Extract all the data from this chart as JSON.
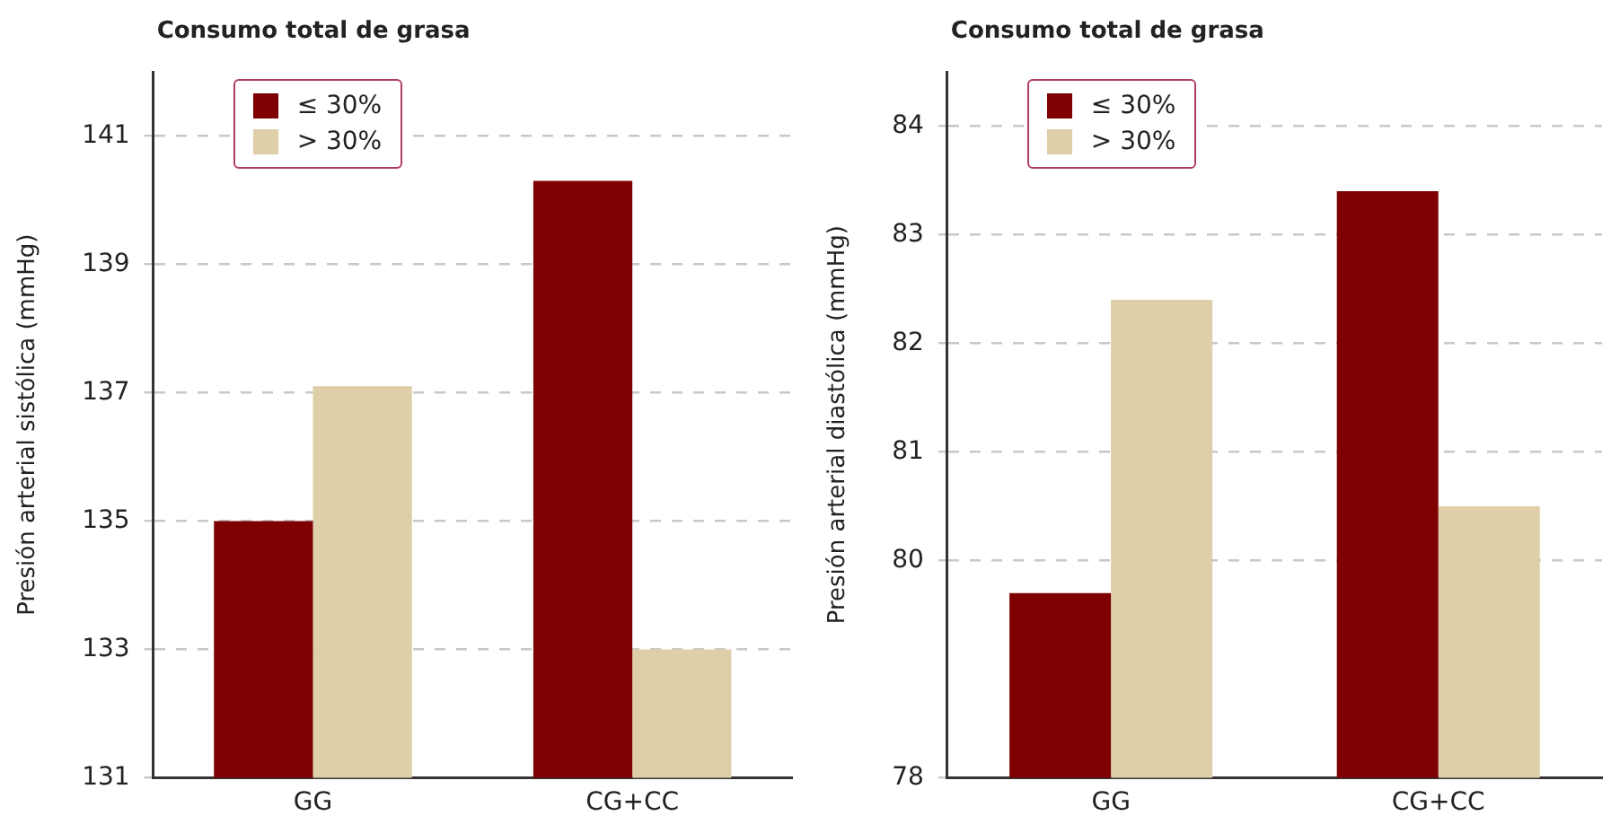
{
  "chart_data": [
    {
      "type": "bar",
      "title": "Consumo total de grasa",
      "ylabel": "Presión arterial sistólica (mmHg)",
      "categories": [
        "GG",
        "CG+CC"
      ],
      "series": [
        {
          "name": "≤ 30%",
          "color": "#7f0000",
          "values": [
            135,
            140.3
          ]
        },
        {
          "name": "> 30%",
          "color": "#dfcfa8",
          "values": [
            137.1,
            133
          ]
        }
      ],
      "ylim": [
        131,
        142
      ],
      "yticks": [
        131,
        133,
        135,
        137,
        139,
        141
      ],
      "grid": "y",
      "legend": "top left"
    },
    {
      "type": "bar",
      "title": "Consumo total de grasa",
      "ylabel": "Presión arterial diastólica (mmHg)",
      "categories": [
        "GG",
        "CG+CC"
      ],
      "series": [
        {
          "name": "≤ 30%",
          "color": "#7f0000",
          "values": [
            79.7,
            83.4
          ]
        },
        {
          "name": "> 30%",
          "color": "#dfcfa8",
          "values": [
            82.4,
            80.5
          ]
        }
      ],
      "ylim": [
        78,
        84.5
      ],
      "yticks": [
        78,
        80,
        81,
        82,
        83,
        84
      ],
      "grid": "y",
      "legend": "top left"
    }
  ]
}
